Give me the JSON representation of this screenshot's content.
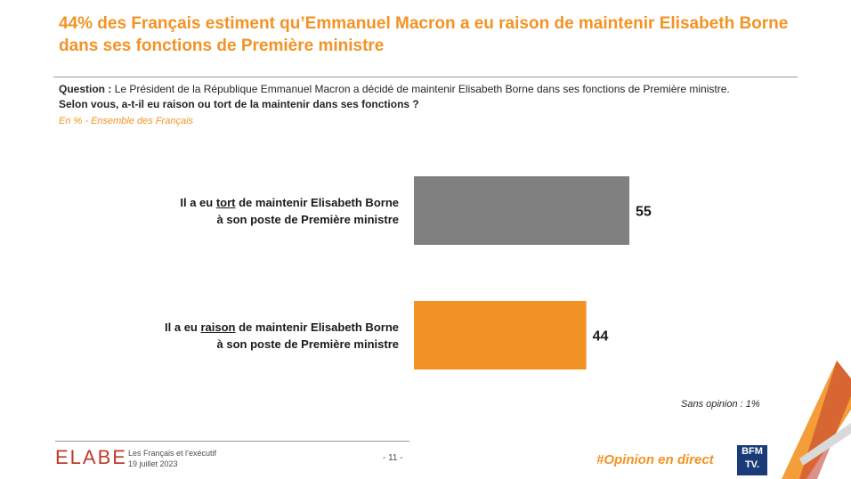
{
  "header": {
    "title": "44% des Français estiment qu’Emmanuel Macron a eu raison de maintenir Elisabeth Borne dans ses fonctions de Première ministre"
  },
  "question": {
    "label": "Question :",
    "line1": "Le Président de la République Emmanuel Macron a décidé de maintenir Elisabeth Borne dans ses fonctions de Première ministre.",
    "line2": "Selon vous, a-t-il eu raison ou tort de la maintenir dans ses fonctions ?"
  },
  "basis": "En % - Ensemble des Français",
  "chart_data": {
    "type": "bar",
    "orientation": "horizontal",
    "categories": [
      "Il a eu tort de maintenir Elisabeth Borne à son poste de Première ministre",
      "Il a eu raison de maintenir Elisabeth Borne à son poste de Première ministre"
    ],
    "values": [
      55,
      44
    ],
    "colors": [
      "#808080",
      "#f39325"
    ],
    "unit": "%",
    "xlim": [
      0,
      100
    ],
    "grid": false,
    "legend": "none"
  },
  "labels": {
    "tort": {
      "pre": "Il a eu ",
      "key": "tort",
      "post": " de maintenir Elisabeth Borne",
      "line2": "à son poste de Première ministre"
    },
    "raison": {
      "pre": "Il a eu ",
      "key": "raison",
      "post": " de maintenir Elisabeth Borne",
      "line2": "à son poste de Première ministre"
    }
  },
  "note": "Sans opinion : 1%",
  "footer": {
    "logo": "ELABE",
    "survey_title": "Les Français et l’exécutif",
    "date": "19 juillet 2023",
    "page": "- 11 -",
    "hashtag": "#Opinion en direct",
    "channel_line1": "BFM",
    "channel_line2": "TV."
  }
}
